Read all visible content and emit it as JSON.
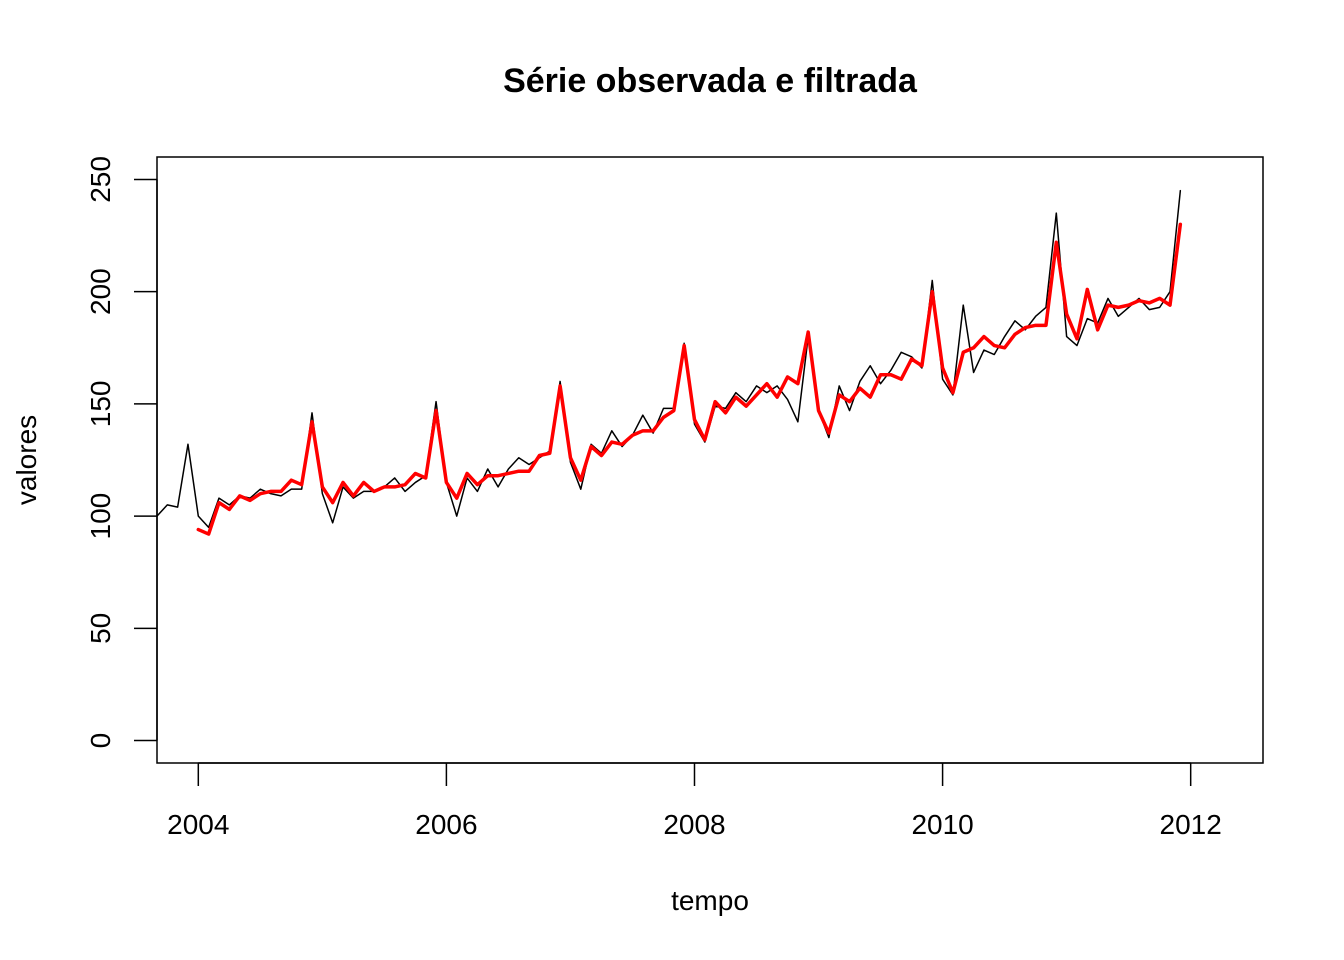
{
  "chart_data": {
    "type": "line",
    "title": "Série observada e filtrada",
    "xlabel": "tempo",
    "ylabel": "valores",
    "xlim": [
      2003.667,
      2012.583
    ],
    "ylim": [
      -10,
      260
    ],
    "x_ticks": [
      2004,
      2006,
      2008,
      2010,
      2012
    ],
    "x_tick_labels": [
      "2004",
      "2006",
      "2008",
      "2010",
      "2012"
    ],
    "y_ticks": [
      0,
      50,
      100,
      150,
      200,
      250
    ],
    "y_tick_labels": [
      "0",
      "50",
      "100",
      "150",
      "200",
      "250"
    ],
    "grid": false,
    "legend": "none",
    "series": [
      {
        "color": "#000000",
        "line_width": 1.5,
        "start": [
          2003,
          9
        ],
        "frequency": 12,
        "values": [
          100,
          105,
          104,
          132,
          100,
          95,
          108,
          105,
          109,
          108,
          112,
          110,
          109,
          112,
          112,
          146,
          110,
          97,
          113,
          108,
          111,
          111,
          113,
          117,
          111,
          115,
          118,
          151,
          115,
          100,
          117,
          111,
          121,
          113,
          121,
          126,
          123,
          126,
          129,
          160,
          124,
          112,
          132,
          128,
          138,
          131,
          136,
          145,
          137,
          148,
          148,
          177,
          141,
          133,
          149,
          148,
          155,
          151,
          158,
          155,
          158,
          152,
          142,
          180,
          147,
          135,
          158,
          147,
          160,
          167,
          159,
          165,
          173,
          171,
          166,
          205,
          161,
          154,
          194,
          164,
          174,
          172,
          180,
          187,
          183,
          189,
          193,
          235,
          180,
          176,
          188,
          186,
          197,
          189,
          193,
          197,
          192,
          193,
          200,
          245
        ]
      },
      {
        "color": "#ff0000",
        "line_width": 3.5,
        "start": [
          2004,
          1
        ],
        "frequency": 12,
        "values": [
          94,
          92,
          106,
          103,
          109,
          107,
          110,
          111,
          111,
          116,
          114,
          142,
          113,
          106,
          115,
          109,
          115,
          111,
          113,
          113,
          114,
          119,
          117,
          147,
          115,
          108,
          119,
          114,
          118,
          118,
          119,
          120,
          120,
          127,
          128,
          158,
          126,
          116,
          131,
          127,
          133,
          132,
          136,
          138,
          138,
          144,
          147,
          176,
          143,
          134,
          151,
          146,
          153,
          149,
          154,
          159,
          153,
          162,
          159,
          182,
          147,
          137,
          154,
          151,
          157,
          153,
          163,
          163,
          161,
          170,
          167,
          200,
          166,
          155,
          173,
          175,
          180,
          176,
          175,
          181,
          184,
          185,
          185,
          222,
          190,
          179,
          201,
          183,
          194,
          193,
          194,
          196,
          195,
          197,
          194,
          230
        ]
      }
    ]
  }
}
